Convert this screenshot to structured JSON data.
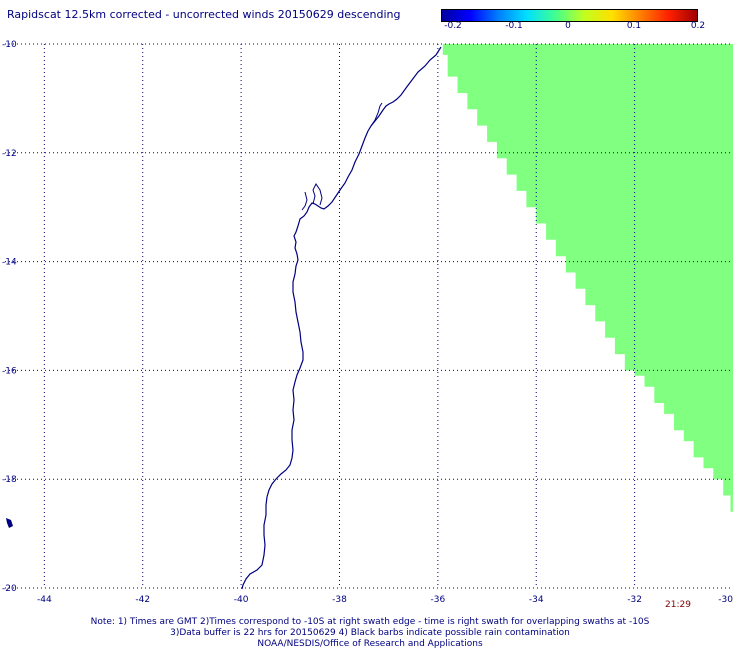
{
  "title": "Rapidscat 12.5km corrected - uncorrected winds 20150629 descending",
  "colorbar": {
    "labels": [
      "-0.2",
      "-0.1",
      "0",
      "0.1",
      "0.2"
    ],
    "colors": [
      "#0000a0",
      "#0000ff",
      "#0080ff",
      "#00e0ff",
      "#40ff90",
      "#c0ff20",
      "#ffe000",
      "#ff8000",
      "#ff2000",
      "#a00000"
    ]
  },
  "axes": {
    "lon_ticks": [
      "-44",
      "-42",
      "-40",
      "-38",
      "-36",
      "-34",
      "-32",
      "-30"
    ],
    "lat_ticks": [
      "-10",
      "-12",
      "-14",
      "-16",
      "-18",
      "-20"
    ],
    "lon_range": [
      -44.8,
      -30
    ],
    "lat_range": [
      -20,
      -10
    ],
    "grid": true,
    "grid_style": "dotted",
    "grid_color": "#000080"
  },
  "swath": {
    "color": "#80ff80",
    "value": "0"
  },
  "coastline_color": "#000080",
  "timestamp": "21:29",
  "notes": [
    "Note: 1) Times are GMT 2)Times correspond to -10S at right swath edge - time is right swath for overlapping swaths at -10S",
    "3)Data buffer is 22 hrs for 20150629 4) Black barbs indicate possible rain contamination",
    "NOAA/NESDIS/Office of Research and Applications"
  ]
}
